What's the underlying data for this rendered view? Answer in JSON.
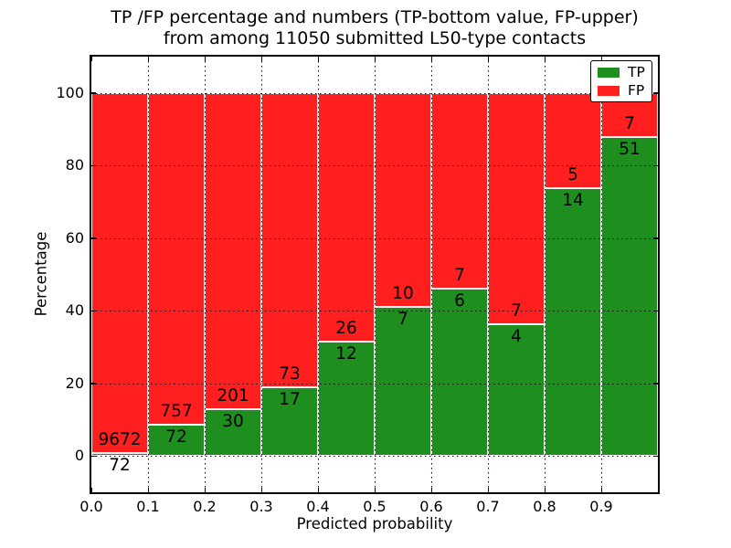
{
  "title": {
    "line1": "TP /FP percentage and numbers (TP-bottom value, FP-upper)",
    "line2": "from among 11050 submitted L50-type contacts"
  },
  "axes": {
    "xlabel": "Predicted probability",
    "ylabel": "Percentage",
    "x_ticks": [
      "0.0",
      "0.1",
      "0.2",
      "0.3",
      "0.4",
      "0.5",
      "0.6",
      "0.7",
      "0.8",
      "0.9"
    ],
    "y_ticks": [
      "0",
      "20",
      "40",
      "60",
      "80",
      "100"
    ],
    "xlim": [
      0.0,
      1.0
    ],
    "ylim": [
      -10,
      110
    ],
    "grid": true
  },
  "legend": {
    "position": "upper-right",
    "entries": [
      {
        "label": "TP",
        "color": "#1e8f1e"
      },
      {
        "label": "FP",
        "color": "#ff1f1f"
      }
    ]
  },
  "colors": {
    "tp_green": "#1e8f1e",
    "fp_red": "#ff1f1f",
    "bar_edge": "#ffffff",
    "grid": "#000000"
  },
  "chart_data": {
    "type": "bar",
    "stacked": true,
    "total_contacts": 11050,
    "bin_width": 0.1,
    "categories": [
      "0.0-0.1",
      "0.1-0.2",
      "0.2-0.3",
      "0.3-0.4",
      "0.4-0.5",
      "0.5-0.6",
      "0.6-0.7",
      "0.7-0.8",
      "0.8-0.9",
      "0.9-1.0"
    ],
    "series": [
      {
        "name": "TP",
        "color": "#1e8f1e",
        "counts": [
          72,
          72,
          30,
          17,
          12,
          7,
          6,
          4,
          14,
          51
        ],
        "percent": [
          0.74,
          8.69,
          12.99,
          18.89,
          31.58,
          41.18,
          46.15,
          36.36,
          73.68,
          87.93
        ]
      },
      {
        "name": "FP",
        "color": "#ff1f1f",
        "counts": [
          9672,
          757,
          201,
          73,
          26,
          10,
          7,
          7,
          5,
          7
        ],
        "percent": [
          99.26,
          91.31,
          87.01,
          81.11,
          68.42,
          58.82,
          53.85,
          63.64,
          26.32,
          12.07
        ]
      }
    ],
    "annotation_note": "TP-bottom value, FP-upper"
  }
}
